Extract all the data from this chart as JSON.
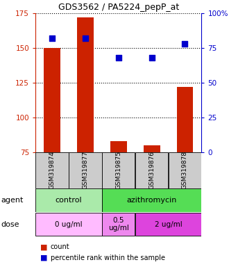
{
  "title": "GDS3562 / PA5224_pepP_at",
  "samples": [
    "GSM319874",
    "GSM319877",
    "GSM319875",
    "GSM319876",
    "GSM319878"
  ],
  "counts": [
    150,
    172,
    83,
    80,
    122
  ],
  "percentiles": [
    82,
    82,
    68,
    68,
    78
  ],
  "ylim_left": [
    75,
    175
  ],
  "ylim_right": [
    0,
    100
  ],
  "yticks_left": [
    75,
    100,
    125,
    150,
    175
  ],
  "yticks_right": [
    0,
    25,
    50,
    75,
    100
  ],
  "bar_color": "#cc2200",
  "dot_color": "#0000cc",
  "bar_width": 0.5,
  "dot_size": 40,
  "grid_color": "#333333",
  "tick_color_left": "#cc2200",
  "tick_color_right": "#0000cc",
  "bg_color": "#ffffff",
  "sample_box_color": "#cccccc",
  "agent_info": [
    {
      "text": "control",
      "cols": [
        0,
        1
      ],
      "color": "#aaeaaa"
    },
    {
      "text": "azithromycin",
      "cols": [
        2,
        3,
        4
      ],
      "color": "#55dd55"
    }
  ],
  "dose_info": [
    {
      "text": "0 ug/ml",
      "cols": [
        0,
        1
      ],
      "color": "#ffbbff"
    },
    {
      "text": "0.5\nug/ml",
      "cols": [
        2
      ],
      "color": "#ee88ee"
    },
    {
      "text": "2 ug/ml",
      "cols": [
        3,
        4
      ],
      "color": "#dd44dd"
    }
  ],
  "legend_items": [
    {
      "color": "#cc2200",
      "label": "count"
    },
    {
      "color": "#0000cc",
      "label": "percentile rank within the sample"
    }
  ]
}
